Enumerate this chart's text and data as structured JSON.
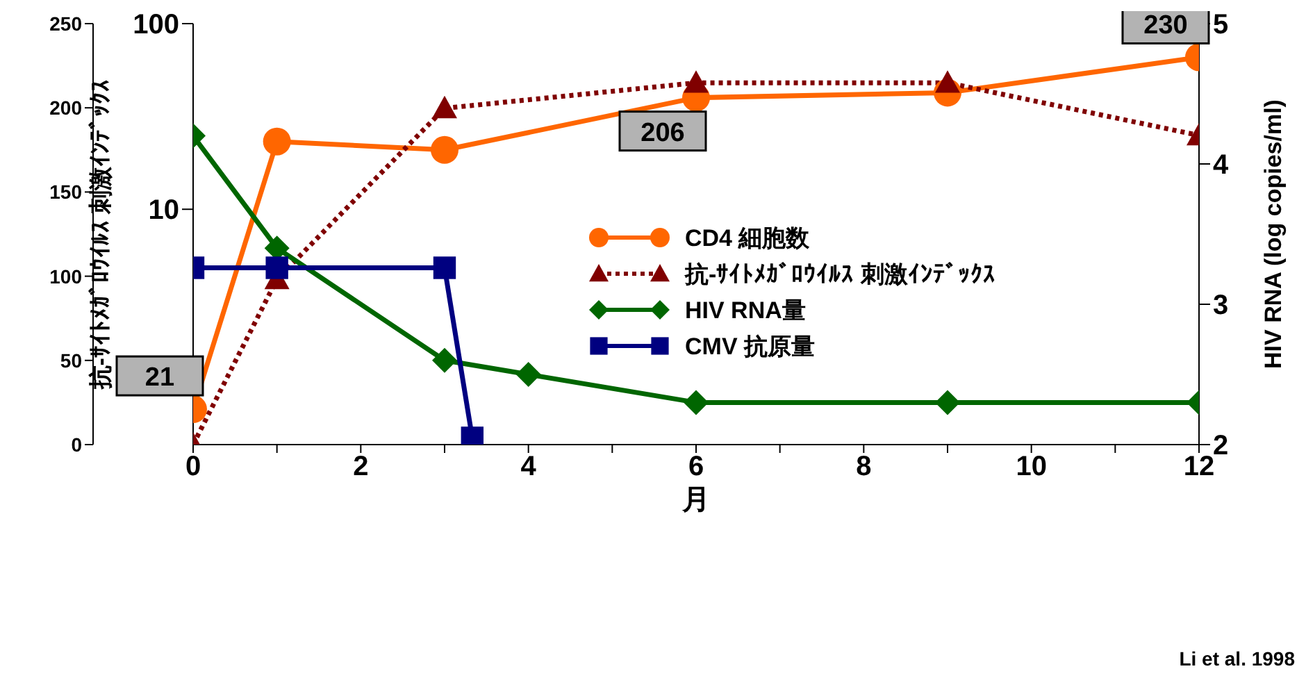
{
  "chart_data": {
    "type": "line",
    "xlabel": "月",
    "ylabel": "抗-ｻｲﾄﾒｶﾞﾛｳｲﾙｽ 刺激ｲﾝﾃﾞｯｸｽ",
    "y2label": "HIV RNA (log copies/ml)",
    "annotations": [
      "Li et al. 1998"
    ],
    "xlim": [
      0,
      12
    ],
    "xticks": [
      0,
      {
        "value": 1,
        "label": null
      },
      2,
      {
        "value": 3,
        "label": null
      },
      4,
      {
        "value": 5,
        "label": null
      },
      6,
      {
        "value": 7,
        "label": null
      },
      8,
      {
        "value": 9,
        "label": null
      },
      10,
      {
        "value": 11,
        "label": null
      },
      12
    ],
    "ylim": [
      0.54,
      100
    ],
    "yticks": [
      10,
      100
    ],
    "log": "y",
    "y2lim": [
      2,
      5
    ],
    "y2ticks": [
      2,
      3,
      4,
      5
    ],
    "y3lim": [
      0,
      250
    ],
    "y3ticks": [
      0,
      50,
      100,
      150,
      200,
      250
    ],
    "legend": "right",
    "grid": false,
    "series": [
      {
        "name": "CD4 細胞数",
        "color": "#ff6600",
        "axis": "y3",
        "marker": "circle",
        "line_style": "solid",
        "x": [
          0,
          1,
          3,
          6,
          9,
          12
        ],
        "values": [
          21,
          180,
          175,
          206,
          209,
          230
        ],
        "value_labels": [
          "21",
          null,
          null,
          "206",
          null,
          "230"
        ]
      },
      {
        "name": "抗-ｻｲﾄﾒｶﾞﾛｳｲﾙｽ 刺激ｲﾝﾃﾞｯｸｽ",
        "color": "#800000",
        "axis": "y",
        "marker": "triangle",
        "line_style": "dotted",
        "x": [
          0,
          1,
          3,
          6,
          9,
          12
        ],
        "values": [
          0.54,
          4.2,
          35,
          48,
          48,
          25
        ]
      },
      {
        "name": "HIV RNA量",
        "color": "#006600",
        "axis": "y2",
        "marker": "diamond",
        "line_style": "solid",
        "x": [
          0,
          1,
          3,
          4,
          6,
          9,
          12
        ],
        "values": [
          4.2,
          3.4,
          2.6,
          2.5,
          2.3,
          2.3,
          2.3
        ]
      },
      {
        "name": "CMV 抗原量",
        "color": "#000080",
        "axis": "y3",
        "marker": "square",
        "line_style": "solid",
        "x": [
          0,
          1,
          3,
          3.33
        ],
        "values": [
          105,
          105,
          105,
          4
        ]
      }
    ]
  }
}
